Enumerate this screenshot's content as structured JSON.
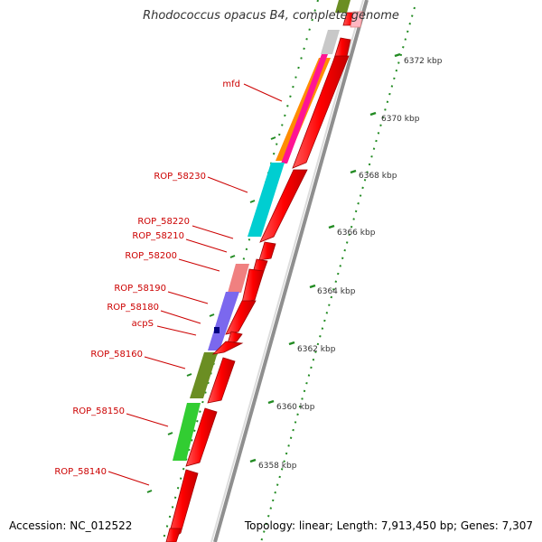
{
  "title": "Rhodococcus opacus B4, complete genome",
  "footer": {
    "accession": "Accession: NC_012522",
    "topology": "Topology: linear; Length: 7,913,450 bp; Genes: 7,307"
  },
  "kbp_labels": [
    "6372 kbp",
    "6370 kbp",
    "6368 kbp",
    "6366 kbp",
    "6364 kbp",
    "6362 kbp",
    "6360 kbp",
    "6358 kbp"
  ],
  "gene_labels": [
    "mfd",
    "ROP_58230",
    "ROP_58220",
    "ROP_58210",
    "ROP_58200",
    "ROP_58190",
    "ROP_58180",
    "acpS",
    "ROP_58160",
    "ROP_58150",
    "ROP_58140"
  ],
  "colors": {
    "gene_arrow": "#ff0000",
    "label": "#cc0000",
    "tick": "#228b22",
    "backbone": "#999999"
  }
}
